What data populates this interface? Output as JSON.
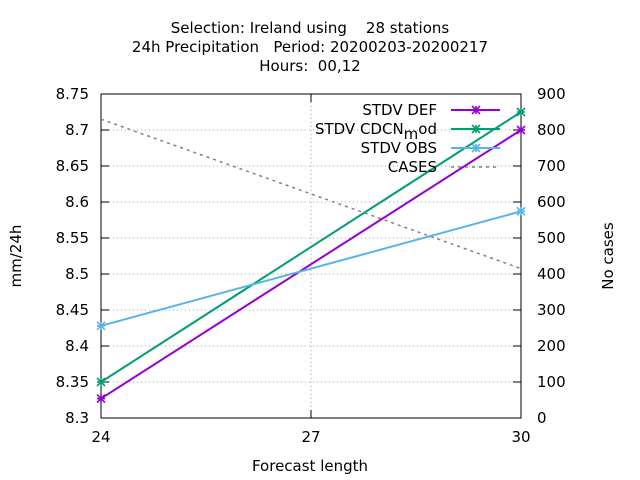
{
  "chart_data": {
    "type": "line",
    "title_lines": [
      "Selection: Ireland using    28 stations",
      "24h Precipitation   Period: 20200203-20200217",
      "Hours:  00,12"
    ],
    "xlabel": "Forecast length",
    "ylabel": "mm/24h",
    "y2label": "No cases",
    "xlim": [
      24,
      30
    ],
    "ylim": [
      8.3,
      8.75
    ],
    "y2lim": [
      0,
      900
    ],
    "x_ticks": [
      "24",
      "27",
      "30"
    ],
    "y_ticks": [
      "8.3",
      "8.35",
      "8.4",
      "8.45",
      "8.5",
      "8.55",
      "8.6",
      "8.65",
      "8.7",
      "8.75"
    ],
    "y2_ticks": [
      "0",
      "100",
      "200",
      "300",
      "400",
      "500",
      "600",
      "700",
      "800",
      "900"
    ],
    "grid": true,
    "legend_position": "top-right",
    "series": [
      {
        "name": "STDV DEF",
        "axis": "y",
        "color": "#9400d3",
        "marker": "star",
        "dashed": false,
        "x": [
          24,
          30
        ],
        "values": [
          8.327,
          8.7
        ]
      },
      {
        "name": "STDV CDCN",
        "name_sub": "m",
        "name_rest": "od",
        "axis": "y",
        "color": "#009e73",
        "marker": "star",
        "dashed": false,
        "x": [
          24,
          30
        ],
        "values": [
          8.35,
          8.725
        ]
      },
      {
        "name": "STDV OBS",
        "axis": "y",
        "color": "#56b4e9",
        "marker": "star",
        "dashed": false,
        "x": [
          24,
          30
        ],
        "values": [
          8.428,
          8.587
        ]
      },
      {
        "name": "CASES",
        "axis": "y2",
        "color": "#808080",
        "marker": "none",
        "dashed": true,
        "x": [
          24,
          30
        ],
        "values": [
          830,
          415
        ]
      }
    ]
  }
}
